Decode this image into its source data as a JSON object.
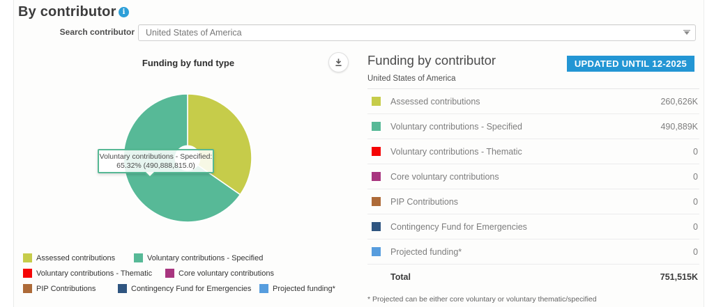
{
  "page": {
    "title": "By contributor",
    "info_icon": "info-icon",
    "search_label": "Search contributor",
    "search_value": "United States of America"
  },
  "left_chart": {
    "title": "Funding by fund type",
    "download_icon": "download-icon",
    "tooltip": {
      "line1": "Voluntary contributions - Specified:",
      "line2": "65.32% (490,888,815.0)"
    }
  },
  "right_panel": {
    "title": "Funding by contributor",
    "subtitle": "United States of America",
    "badge": "UPDATED UNTIL 12-2025",
    "total_label": "Total",
    "total_value": "751,515K",
    "footnote": "* Projected can be either core voluntary or voluntary thematic/specified"
  },
  "funds": [
    {
      "label": "Assessed contributions",
      "value": "260,626K",
      "color": "#c6cc4a",
      "percent": 34.68
    },
    {
      "label": "Voluntary contributions - Specified",
      "value": "490,889K",
      "color": "#57b997",
      "percent": 65.32
    },
    {
      "label": "Voluntary contributions - Thematic",
      "value": "0",
      "color": "#f50505",
      "percent": 0
    },
    {
      "label": "Core voluntary contributions",
      "value": "0",
      "color": "#a8357f",
      "percent": 0
    },
    {
      "label": "PIP Contributions",
      "value": "0",
      "color": "#ad6a38",
      "percent": 0
    },
    {
      "label": "Contingency Fund for Emergencies",
      "value": "0",
      "color": "#2f5580",
      "percent": 0
    },
    {
      "label": "Projected funding*",
      "value": "0",
      "color": "#579dde",
      "percent": 0
    }
  ],
  "chart_data": {
    "type": "pie",
    "title": "Funding by fund type",
    "legend_position": "bottom",
    "donut_hole_radius_ratio": 0.2,
    "slices": [
      {
        "label": "Assessed contributions",
        "percent": 34.68,
        "value": 260626185,
        "color": "#c6cc4a"
      },
      {
        "label": "Voluntary contributions - Specified",
        "percent": 65.32,
        "value": 490888815,
        "color": "#57b997"
      },
      {
        "label": "Voluntary contributions - Thematic",
        "percent": 0,
        "value": 0,
        "color": "#f50505"
      },
      {
        "label": "Core voluntary contributions",
        "percent": 0,
        "value": 0,
        "color": "#a8357f"
      },
      {
        "label": "PIP Contributions",
        "percent": 0,
        "value": 0,
        "color": "#ad6a38"
      },
      {
        "label": "Contingency Fund for Emergencies",
        "percent": 0,
        "value": 0,
        "color": "#2f5580"
      },
      {
        "label": "Projected funding*",
        "percent": 0,
        "value": 0,
        "color": "#579dde"
      }
    ],
    "highlighted_slice": "Voluntary contributions - Specified",
    "tooltip_text": "Voluntary contributions - Specified: 65.32% (490,888,815.0)"
  }
}
